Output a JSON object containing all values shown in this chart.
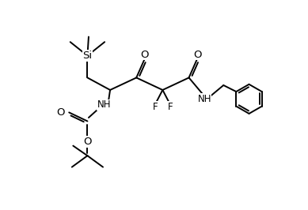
{
  "bg_color": "#ffffff",
  "line_color": "#000000",
  "line_width": 1.4,
  "font_size": 8.5,
  "fig_width": 3.89,
  "fig_height": 2.66,
  "dpi": 100,
  "xlim": [
    0,
    10
  ],
  "ylim": [
    0,
    6.84
  ]
}
